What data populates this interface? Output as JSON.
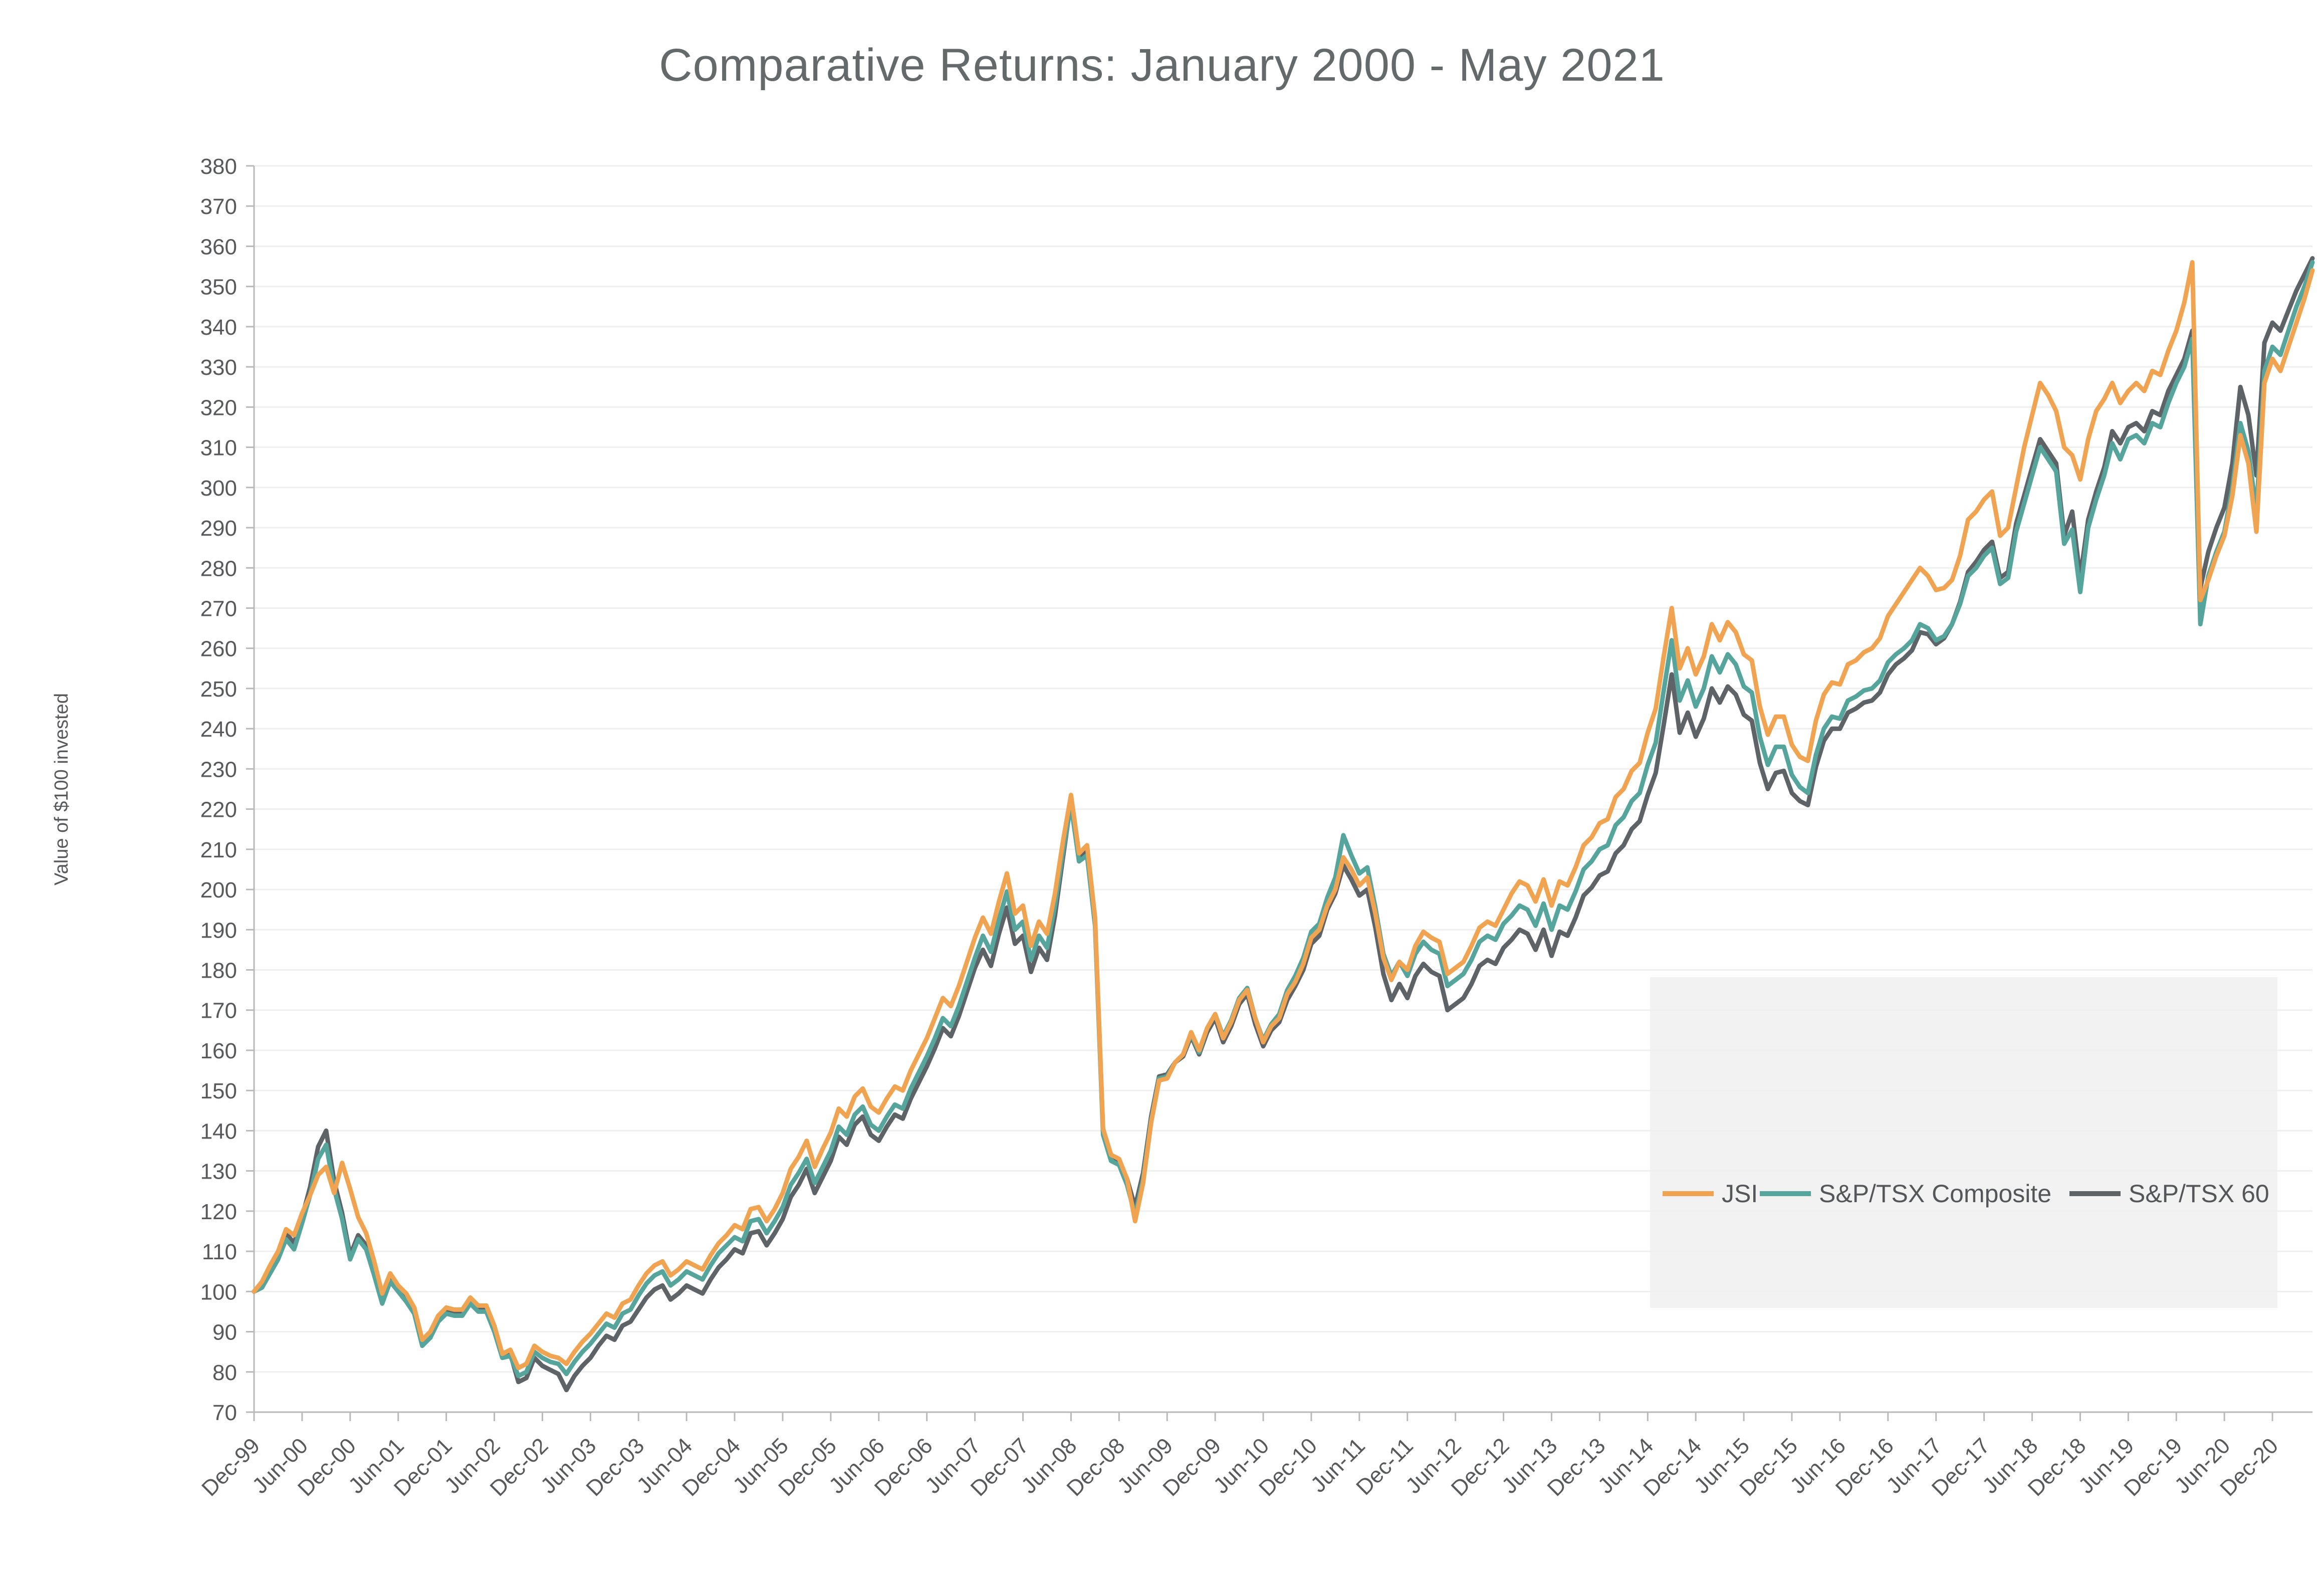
{
  "page": {
    "background": "#FFFFFF"
  },
  "chart_data": {
    "type": "line",
    "title": "Comparative Returns: January 2000 - May 2021",
    "xlabel": "",
    "ylabel": "Value of $100 invested",
    "ylim": [
      70,
      380
    ],
    "y_tick_step": 10,
    "grid": "horizontal",
    "gridline_color": "#EFEFEF",
    "axis_color": "#B9B9B9",
    "text_color": "#58595B",
    "legend_position": "inside-bottom-right",
    "legend_background": "#F2F2F2",
    "x_interval": "monthly",
    "x_start": "Dec-99",
    "x_end": "May-21",
    "x_tick_labels": [
      "Dec-99",
      "Jun-00",
      "Dec-00",
      "Jun-01",
      "Dec-01",
      "Jun-02",
      "Dec-02",
      "Jun-03",
      "Dec-03",
      "Jun-04",
      "Dec-04",
      "Jun-05",
      "Dec-05",
      "Jun-06",
      "Dec-06",
      "Jun-07",
      "Dec-07",
      "Jun-08",
      "Dec-08",
      "Jun-09",
      "Dec-09",
      "Jun-10",
      "Dec-10",
      "Jun-11",
      "Dec-11",
      "Jun-12",
      "Dec-12",
      "Jun-13",
      "Dec-13",
      "Jun-14",
      "Dec-14",
      "Jun-15",
      "Dec-15",
      "Jun-16",
      "Dec-16",
      "Jun-17",
      "Dec-17",
      "Jun-18",
      "Dec-18",
      "Jun-19",
      "Dec-19",
      "Jun-20",
      "Dec-20"
    ],
    "series": [
      {
        "name": "JSI",
        "color": "#F0A350",
        "values": [
          100,
          102.5,
          106.5,
          110,
          115.5,
          114,
          119.5,
          124,
          129,
          131,
          124.5,
          132,
          125.5,
          118.5,
          114.5,
          107.5,
          99.5,
          104.5,
          101.5,
          99.5,
          96,
          88,
          90,
          94,
          96,
          95.5,
          95.5,
          98.5,
          96.5,
          96.5,
          91.5,
          84.5,
          85.5,
          81,
          82,
          86.5,
          85,
          84,
          83.5,
          82,
          85,
          87.5,
          89.5,
          92,
          94.5,
          93.5,
          97,
          98,
          101.5,
          104.5,
          106.5,
          107.5,
          104,
          105.5,
          107.5,
          106.5,
          105.5,
          109,
          112,
          114,
          116.5,
          115.5,
          120.5,
          121,
          117.5,
          120.5,
          124.5,
          130.5,
          133.5,
          137.5,
          131,
          135.5,
          139.5,
          145.5,
          143.5,
          148.5,
          150.5,
          146,
          144.5,
          148,
          151,
          150,
          155,
          159,
          163,
          168,
          173,
          171,
          176,
          182,
          188,
          193,
          189,
          197,
          204,
          194,
          196,
          186,
          192,
          189,
          199,
          212,
          223.5,
          209,
          211,
          193,
          140.5,
          134,
          133,
          128,
          117.5,
          127,
          142,
          152.5,
          153,
          157,
          159,
          164.5,
          160,
          165.5,
          169,
          163,
          167,
          172.5,
          175,
          168,
          162,
          166,
          168,
          174,
          177,
          181.5,
          188,
          190,
          196,
          200,
          208,
          205,
          201,
          203,
          194,
          183,
          177.5,
          182,
          180,
          186,
          189.5,
          188,
          187,
          179,
          180.5,
          182,
          186,
          190.5,
          192,
          191,
          195,
          199,
          202,
          201,
          197,
          202.5,
          196,
          202,
          201,
          205.5,
          211,
          213,
          216.5,
          217.5,
          223,
          225,
          229.5,
          231.5,
          239,
          245,
          258,
          270,
          255,
          260,
          253.5,
          258,
          266,
          262,
          266.5,
          264,
          258.5,
          257,
          245.5,
          238.5,
          243,
          243,
          236,
          233,
          232,
          242,
          248.5,
          251.5,
          251,
          256,
          257,
          259,
          260,
          262.5,
          268,
          271,
          274,
          277,
          280,
          278,
          274.5,
          275,
          277,
          283,
          292,
          294,
          297,
          299,
          288,
          290,
          300,
          310,
          318,
          326,
          323,
          319,
          310,
          308,
          302,
          312,
          319,
          322,
          326,
          321,
          324,
          326,
          324,
          329,
          328,
          334,
          339,
          346,
          356,
          272,
          277,
          283,
          288,
          298,
          313,
          306,
          289,
          326,
          332,
          329,
          335,
          341,
          347,
          354
        ]
      },
      {
        "name": "S&P/TSX Composite",
        "color": "#56A59D",
        "values": [
          100,
          101,
          104.5,
          108,
          113,
          110.5,
          117,
          124,
          133,
          136.5,
          125.5,
          118,
          108,
          113,
          110.5,
          104,
          97,
          102.5,
          100,
          97.5,
          94.5,
          86.5,
          88.5,
          92.5,
          94.5,
          94,
          94,
          97,
          95,
          95,
          90,
          83.5,
          84,
          79,
          80,
          85,
          83.5,
          82.5,
          82,
          79.5,
          82.5,
          85,
          87,
          89.5,
          92,
          91,
          94.5,
          95.5,
          99,
          102,
          104,
          105,
          101.5,
          103,
          105,
          104,
          103,
          106.5,
          109.5,
          111.5,
          113.5,
          112.5,
          117.5,
          118,
          114.5,
          117.5,
          121,
          126.5,
          129.5,
          133,
          127,
          131,
          135,
          141,
          139,
          144,
          146,
          141.5,
          140,
          143.5,
          146.5,
          145.5,
          150.5,
          154.5,
          158.5,
          163,
          168,
          166,
          171,
          177,
          183,
          188.5,
          184.5,
          192.5,
          199.5,
          190,
          192,
          182.5,
          188.5,
          185.5,
          196,
          209.5,
          221,
          207,
          208.5,
          191,
          139,
          132.5,
          131.5,
          126.5,
          119,
          128,
          142.5,
          153,
          153.5,
          157,
          159,
          164,
          159.5,
          165.5,
          169,
          163.5,
          167.5,
          173,
          175.5,
          168,
          162.5,
          166.5,
          169,
          175,
          178.5,
          183,
          189.5,
          191.5,
          198,
          203,
          213.5,
          208.5,
          204,
          205.5,
          195.5,
          184,
          178.5,
          182,
          178.5,
          184,
          187,
          185,
          184,
          176,
          177.5,
          179,
          182.5,
          187,
          188.5,
          187.5,
          191.5,
          193.5,
          196,
          195,
          191,
          196.5,
          190,
          196,
          195,
          199.5,
          205,
          207,
          210,
          211,
          216,
          218,
          222,
          224,
          231,
          236.5,
          249.5,
          262,
          247,
          252,
          245.5,
          250,
          258,
          254,
          258.5,
          256,
          250.5,
          249,
          238,
          231,
          235.5,
          235.5,
          228.5,
          225.5,
          224,
          233.5,
          240,
          243,
          242.5,
          247,
          248,
          249.5,
          250,
          252,
          256.5,
          258.5,
          260,
          262,
          266,
          265,
          262,
          263,
          266,
          271,
          278,
          280,
          283,
          285,
          276,
          277.5,
          289,
          296,
          303,
          310,
          307,
          304,
          286,
          289.5,
          274,
          290,
          297,
          303,
          311,
          307,
          312,
          313,
          311,
          316,
          315,
          321,
          326,
          330,
          337,
          266,
          278,
          284,
          289,
          300,
          316,
          309,
          294,
          329,
          335,
          333,
          339,
          345,
          350,
          356
        ]
      },
      {
        "name": "S&P/TSX 60",
        "color": "#5E6367",
        "values": [
          100,
          101,
          105,
          109,
          114.5,
          112,
          118.5,
          126,
          136,
          140,
          127.5,
          119.5,
          109,
          114,
          111.5,
          105,
          97.5,
          103.5,
          101,
          98.5,
          95.5,
          87,
          89,
          93.5,
          95.5,
          95,
          95,
          98,
          95.5,
          96,
          91,
          84,
          84.5,
          77.5,
          78.5,
          83.5,
          81.5,
          80.5,
          79.5,
          75.5,
          79,
          81.5,
          83.5,
          86.5,
          89,
          88,
          91.5,
          92.5,
          95.5,
          98.5,
          100.5,
          101.5,
          98,
          99.5,
          101.5,
          100.5,
          99.5,
          103,
          106,
          108,
          110.5,
          109.5,
          114.5,
          115,
          111.5,
          114.5,
          118,
          123.5,
          126.5,
          130.5,
          124.5,
          128.5,
          132.5,
          138.5,
          136.5,
          141.5,
          143.5,
          139,
          137.5,
          141,
          144,
          143,
          148,
          152,
          156,
          160.5,
          165.5,
          163.5,
          168.5,
          174.5,
          180.5,
          185,
          181,
          189,
          195.5,
          186.5,
          188.5,
          179.5,
          185.5,
          182.5,
          193.5,
          208,
          222,
          208,
          209.5,
          192,
          140,
          134,
          132.5,
          128,
          121,
          129.5,
          143.5,
          153.5,
          154,
          157,
          158.5,
          163.5,
          159,
          164.5,
          168,
          162,
          166,
          171.5,
          174,
          166.5,
          161,
          165,
          167,
          172.5,
          176,
          180,
          186.5,
          188.5,
          195,
          199,
          206,
          202.5,
          198.5,
          200,
          190.5,
          179,
          172.5,
          176.5,
          173,
          178.5,
          181.5,
          179.5,
          178.5,
          170,
          171.5,
          173,
          176.5,
          181,
          182.5,
          181.5,
          185.5,
          187.5,
          190,
          189,
          185,
          190,
          183.5,
          189.5,
          188.5,
          193,
          198.5,
          200.5,
          203.5,
          204.5,
          209,
          211,
          215,
          217,
          223.5,
          229,
          241,
          253.5,
          239,
          244,
          238,
          242.5,
          250,
          246.5,
          250.5,
          248.5,
          243.5,
          242,
          231.5,
          225,
          229,
          229.5,
          224,
          222,
          221,
          230.5,
          237,
          240,
          240,
          244,
          245,
          246.5,
          247,
          249,
          253.5,
          256,
          257.5,
          259.5,
          264,
          263.5,
          261,
          262.5,
          266,
          271.5,
          279,
          281.5,
          284.5,
          286.5,
          277.5,
          279,
          291,
          298,
          305,
          312,
          309,
          306,
          288,
          294,
          277.5,
          292,
          299,
          305,
          314,
          311,
          315,
          316,
          314,
          319,
          318,
          324,
          328,
          332,
          339,
          275,
          284,
          290,
          295,
          306,
          325,
          318,
          303,
          336,
          341,
          339,
          344,
          349,
          353,
          357
        ]
      }
    ]
  }
}
